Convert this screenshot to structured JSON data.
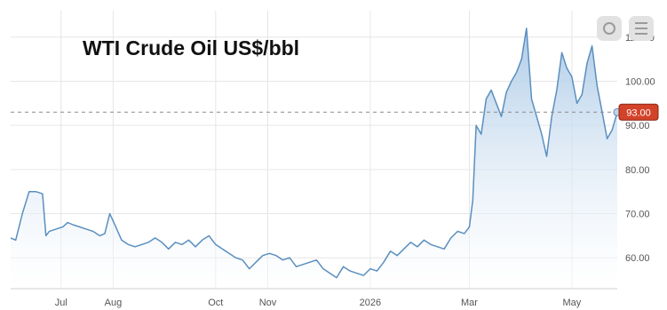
{
  "chart_data": {
    "type": "area",
    "title": "WTI Crude Oil US$/bbl",
    "xlabel": "",
    "ylabel": "",
    "x_tick_labels": [
      "Jul",
      "Aug",
      "Oct",
      "Nov",
      "2026",
      "Mar",
      "May"
    ],
    "x_tick_dates": [
      "2025-07-01",
      "2025-08-01",
      "2025-10-01",
      "2025-11-01",
      "2026-01-01",
      "2026-03-01",
      "2026-05-01"
    ],
    "xlim": [
      "2025-06-01",
      "2026-05-28"
    ],
    "y_ticks": [
      60,
      70,
      80,
      90,
      100,
      110
    ],
    "y_tick_labels": [
      "60.00",
      "70.00",
      "80.00",
      "90.00",
      "100.00",
      "110.00"
    ],
    "ylim": [
      53,
      116
    ],
    "last_value_label": "93.00",
    "last_value": 93.0,
    "series": [
      {
        "x": [
          "2025-06-01",
          "2025-06-04",
          "2025-06-08",
          "2025-06-12",
          "2025-06-16",
          "2025-06-20",
          "2025-06-22",
          "2025-06-24",
          "2025-06-28",
          "2025-07-02",
          "2025-07-05",
          "2025-07-08",
          "2025-07-12",
          "2025-07-16",
          "2025-07-20",
          "2025-07-24",
          "2025-07-27",
          "2025-07-30",
          "2025-08-02",
          "2025-08-06",
          "2025-08-10",
          "2025-08-14",
          "2025-08-18",
          "2025-08-22",
          "2025-08-26",
          "2025-08-30",
          "2025-09-03",
          "2025-09-07",
          "2025-09-11",
          "2025-09-15",
          "2025-09-19",
          "2025-09-23",
          "2025-09-27",
          "2025-10-01",
          "2025-10-05",
          "2025-10-09",
          "2025-10-13",
          "2025-10-17",
          "2025-10-21",
          "2025-10-25",
          "2025-10-29",
          "2025-11-02",
          "2025-11-06",
          "2025-11-10",
          "2025-11-14",
          "2025-11-18",
          "2025-11-22",
          "2025-11-26",
          "2025-11-30",
          "2025-12-04",
          "2025-12-08",
          "2025-12-12",
          "2025-12-16",
          "2025-12-20",
          "2025-12-24",
          "2025-12-28",
          "2026-01-01",
          "2026-01-05",
          "2026-01-09",
          "2026-01-13",
          "2026-01-17",
          "2026-01-21",
          "2026-01-25",
          "2026-01-29",
          "2026-02-02",
          "2026-02-06",
          "2026-02-10",
          "2026-02-14",
          "2026-02-18",
          "2026-02-22",
          "2026-02-26",
          "2026-03-01",
          "2026-03-03",
          "2026-03-05",
          "2026-03-08",
          "2026-03-11",
          "2026-03-14",
          "2026-03-17",
          "2026-03-20",
          "2026-03-23",
          "2026-03-26",
          "2026-03-29",
          "2026-04-01",
          "2026-04-04",
          "2026-04-07",
          "2026-04-10",
          "2026-04-13",
          "2026-04-16",
          "2026-04-19",
          "2026-04-22",
          "2026-04-25",
          "2026-04-28",
          "2026-05-01",
          "2026-05-04",
          "2026-05-07",
          "2026-05-10",
          "2026-05-13",
          "2026-05-16",
          "2026-05-19",
          "2026-05-22",
          "2026-05-25",
          "2026-05-28"
        ],
        "values": [
          64.5,
          64.0,
          70.0,
          75.0,
          75.0,
          74.5,
          65.0,
          66.0,
          66.5,
          67.0,
          68.0,
          67.5,
          67.0,
          66.5,
          66.0,
          65.0,
          65.5,
          70.0,
          67.5,
          64.0,
          63.0,
          62.5,
          63.0,
          63.5,
          64.5,
          63.5,
          62.0,
          63.5,
          63.0,
          64.0,
          62.5,
          64.0,
          65.0,
          63.0,
          62.0,
          61.0,
          60.0,
          59.5,
          57.5,
          59.0,
          60.5,
          61.0,
          60.5,
          59.5,
          60.0,
          58.0,
          58.5,
          59.0,
          59.5,
          57.5,
          56.5,
          55.5,
          58.0,
          57.0,
          56.5,
          56.0,
          57.5,
          57.0,
          59.0,
          61.5,
          60.5,
          62.0,
          63.5,
          62.5,
          64.0,
          63.0,
          62.5,
          62.0,
          64.5,
          66.0,
          65.5,
          67.0,
          73.0,
          90.0,
          88.0,
          96.0,
          98.0,
          95.0,
          92.0,
          97.5,
          100.0,
          102.0,
          105.0,
          112.0,
          96.0,
          92.0,
          88.0,
          83.0,
          92.0,
          98.0,
          106.5,
          103.0,
          101.0,
          95.0,
          97.0,
          104.0,
          108.0,
          99.0,
          93.0,
          87.0,
          89.0,
          93.0
        ]
      }
    ],
    "colors": {
      "line": "#5a8fbf",
      "area_top": "#a9c8e6",
      "area_bottom": "#ffffff",
      "grid": "#e6e6e6",
      "axis": "#cfcfcf",
      "dashed_reference": "#8a8a8a",
      "badge": "#d2432a",
      "badge_border": "#8c2412",
      "marker": "#c7d3de"
    },
    "grid": true,
    "legend": "none",
    "y_axis_side": "right"
  },
  "controls": {
    "icon_left": "circular-button-icon",
    "icon_right": "menu-button-icon"
  }
}
